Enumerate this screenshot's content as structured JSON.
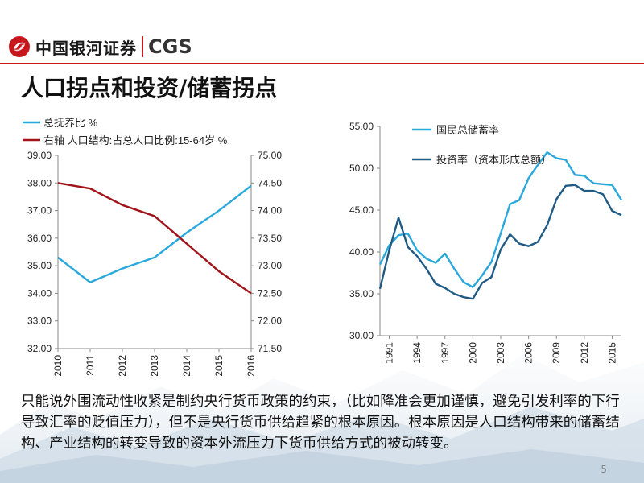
{
  "header": {
    "logo_cn": "中国银河证券",
    "logo_en": "CGS"
  },
  "title": "人口拐点和投资/储蓄拐点",
  "colors": {
    "brand_red": "#c8161d",
    "light_blue": "#29a8dc",
    "dark_red": "#a0141a",
    "dark_blue": "#1f5b85"
  },
  "chart_data": [
    {
      "type": "line",
      "title": "",
      "categories": [
        "2010",
        "2011",
        "2012",
        "2013",
        "2014",
        "2015",
        "2016"
      ],
      "series": [
        {
          "name": "总抚养比 %",
          "axis": "left",
          "color": "#29a8dc",
          "values": [
            35.3,
            34.4,
            34.9,
            35.3,
            36.2,
            37.0,
            37.9
          ]
        },
        {
          "name": "右轴 人口结构:占总人口比例:15-64岁 %",
          "axis": "right",
          "color": "#a0141a",
          "values": [
            74.5,
            74.4,
            74.1,
            73.9,
            73.4,
            72.9,
            72.5
          ]
        }
      ],
      "ylim_left": [
        32,
        39
      ],
      "yticks_left": [
        "32.00",
        "33.00",
        "34.00",
        "35.00",
        "36.00",
        "37.00",
        "38.00",
        "39.00"
      ],
      "ylim_right": [
        71.5,
        75
      ],
      "yticks_right": [
        "71.50",
        "72.00",
        "72.50",
        "73.00",
        "73.50",
        "74.00",
        "74.50",
        "75.00"
      ],
      "legend": "top-left",
      "grid": false
    },
    {
      "type": "line",
      "title": "",
      "x": [
        1990,
        1991,
        1992,
        1993,
        1994,
        1995,
        1996,
        1997,
        1998,
        1999,
        2000,
        2001,
        2002,
        2003,
        2004,
        2005,
        2006,
        2007,
        2008,
        2009,
        2010,
        2011,
        2012,
        2013,
        2014,
        2015,
        2016
      ],
      "xticks": [
        "1991",
        "1994",
        "1997",
        "2000",
        "2003",
        "2006",
        "2009",
        "2012",
        "2015"
      ],
      "series": [
        {
          "name": "国民总储蓄率",
          "color": "#29a8dc",
          "values": [
            38.5,
            40.8,
            42.0,
            42.2,
            40.2,
            39.2,
            38.7,
            39.8,
            38.0,
            36.4,
            35.8,
            37.2,
            38.8,
            42.2,
            45.7,
            46.2,
            48.8,
            50.4,
            51.9,
            51.2,
            51.0,
            49.2,
            49.1,
            48.2,
            48.1,
            48.0,
            46.2
          ]
        },
        {
          "name": "投资率（资本形成总额）",
          "color": "#1f5b85",
          "values": [
            35.6,
            40.2,
            44.1,
            40.6,
            39.5,
            38.0,
            36.2,
            35.7,
            35.0,
            34.6,
            34.4,
            36.3,
            37.0,
            40.3,
            42.1,
            41.0,
            40.7,
            41.2,
            43.2,
            46.3,
            47.9,
            48.0,
            47.3,
            47.3,
            46.9,
            44.9,
            44.4
          ]
        }
      ],
      "ylim": [
        30,
        55
      ],
      "yticks": [
        "30.00",
        "35.00",
        "40.00",
        "45.00",
        "50.00",
        "55.00"
      ],
      "legend": "top",
      "grid": false
    }
  ],
  "body_text": "只能说外围流动性收紧是制约央行货币政策的约束，（比如降准会更加谨慎，避免引发利率的下行导致汇率的贬值压力），但不是央行货币供给趋紧的根本原因。根本原因是人口结构带来的储蓄结构、产业结构的转变导致的资本外流压力下货币供给方式的被动转变。",
  "page_number": "5"
}
